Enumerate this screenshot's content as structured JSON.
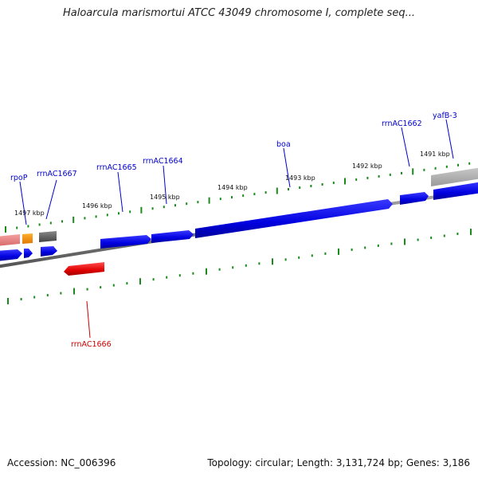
{
  "title": "Haloarcula marismortui ATCC 43049 chromosome I, complete seq...",
  "footer": {
    "accession": "Accession: NC_006396",
    "summary": "Topology: circular; Length: 3,131,724 bp; Genes: 3,186"
  },
  "colors": {
    "forward_gene": "#0000ee",
    "reverse_gene": "#ee0000",
    "label_forward": "#0000cc",
    "label_reverse": "#cc0000",
    "backbone": "#777777",
    "tick": "#1a8a1a"
  },
  "kbp_labels": [
    "1497 kbp",
    "1496 kbp",
    "1495 kbp",
    "1494 kbp",
    "1493 kbp",
    "1492 kbp",
    "1491 kbp"
  ],
  "gene_labels": {
    "forward": [
      "rpoP",
      "rrnAC1667",
      "rrnAC1665",
      "rrnAC1664",
      "boa",
      "rrnAC1662",
      "yafB-3"
    ],
    "reverse": [
      "rrnAC1666"
    ]
  }
}
